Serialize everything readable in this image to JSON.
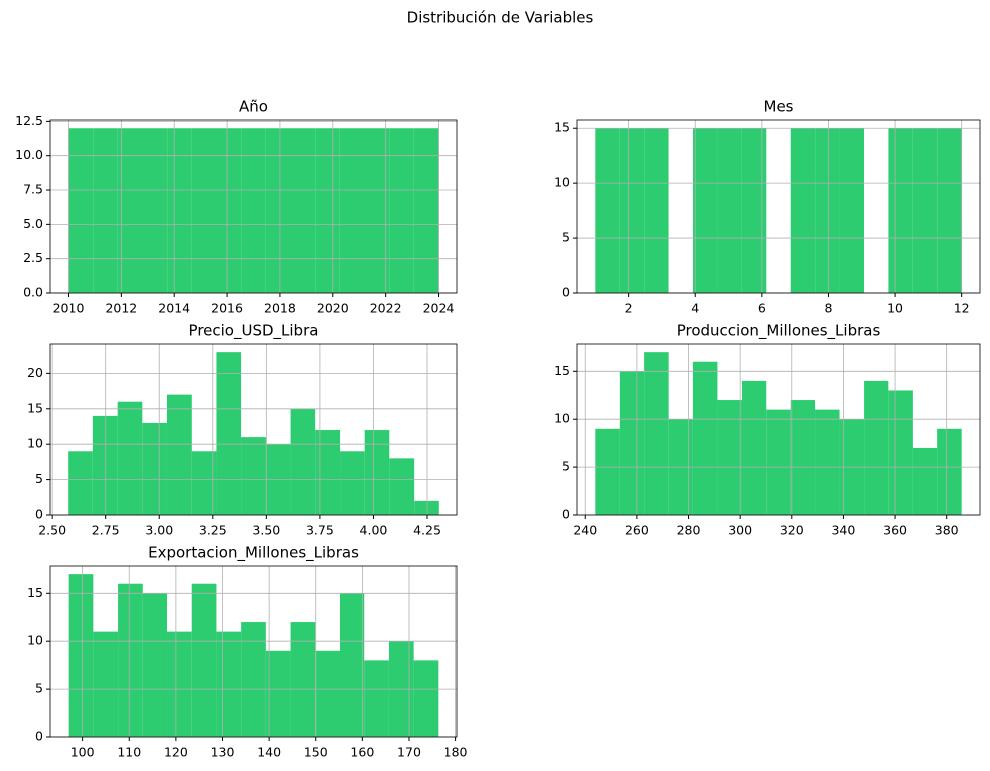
{
  "title": "Distribución de Variables",
  "chart_data": [
    {
      "type": "histogram",
      "title": "Año",
      "color": "#2ecc71",
      "grid": true,
      "bins": [
        2010,
        2010.933,
        2011.867,
        2012.8,
        2013.733,
        2014.667,
        2015.6,
        2016.533,
        2017.467,
        2018.4,
        2019.333,
        2020.267,
        2021.2,
        2022.133,
        2023.067,
        2024
      ],
      "values": [
        12,
        12,
        12,
        12,
        12,
        12,
        12,
        12,
        12,
        12,
        12,
        12,
        12,
        12,
        12
      ],
      "xlim": [
        2009.3,
        2024.7
      ],
      "ylim": [
        0,
        12.6
      ],
      "xticks": [
        2010,
        2012,
        2014,
        2016,
        2018,
        2020,
        2022,
        2024
      ],
      "yticks": [
        {
          "value": 0,
          "label": "0.0"
        },
        2.5,
        {
          "value": 5,
          "label": "5.0"
        },
        7.5,
        {
          "value": 10,
          "label": "10.0"
        },
        12.5
      ]
    },
    {
      "type": "histogram",
      "title": "Mes",
      "color": "#2ecc71",
      "grid": true,
      "bins": [
        1,
        1.733,
        2.467,
        3.2,
        3.933,
        4.667,
        5.4,
        6.133,
        6.867,
        7.6,
        8.333,
        9.067,
        9.8,
        10.533,
        11.267,
        12
      ],
      "values": [
        15,
        15,
        15,
        0,
        15,
        15,
        15,
        0,
        15,
        15,
        15,
        0,
        15,
        15,
        15
      ],
      "xlim": [
        0.45,
        12.55
      ],
      "ylim": [
        0,
        15.75
      ],
      "xticks": [
        2,
        4,
        6,
        8,
        10,
        12
      ],
      "yticks": [
        0,
        5,
        10,
        15
      ]
    },
    {
      "type": "histogram",
      "title": "Precio_USD_Libra",
      "color": "#2ecc71",
      "grid": true,
      "bins": [
        2.575,
        2.69,
        2.806,
        2.921,
        3.036,
        3.152,
        3.267,
        3.382,
        3.498,
        3.613,
        3.728,
        3.844,
        3.959,
        4.074,
        4.19,
        4.305
      ],
      "values": [
        9,
        14,
        16,
        13,
        17,
        9,
        23,
        11,
        10,
        15,
        12,
        9,
        12,
        8,
        2
      ],
      "xlim": [
        2.49,
        4.39
      ],
      "ylim": [
        0,
        24.15
      ],
      "xticks": [
        {
          "value": 2.5,
          "label": "2.50"
        },
        2.75,
        {
          "value": 3,
          "label": "3.00"
        },
        3.25,
        {
          "value": 3.5,
          "label": "3.50"
        },
        3.75,
        {
          "value": 4,
          "label": "4.00"
        },
        4.25
      ],
      "yticks": [
        0,
        5,
        10,
        15,
        20
      ]
    },
    {
      "type": "histogram",
      "title": "Produccion_Millones_Libras",
      "color": "#2ecc71",
      "grid": true,
      "bins": [
        243.9,
        253.4,
        262.8,
        272.3,
        281.7,
        291.2,
        300.7,
        310.1,
        319.6,
        329.0,
        338.5,
        348.0,
        357.4,
        366.9,
        376.3,
        385.8
      ],
      "values": [
        9,
        15,
        17,
        10,
        16,
        12,
        14,
        11,
        12,
        11,
        10,
        14,
        13,
        7,
        9
      ],
      "xlim": [
        236.8,
        392.9
      ],
      "ylim": [
        0,
        17.85
      ],
      "xticks": [
        240,
        260,
        280,
        300,
        320,
        340,
        360,
        380
      ],
      "yticks": [
        0,
        5,
        10,
        15
      ]
    },
    {
      "type": "histogram",
      "title": "Exportacion_Millones_Libras",
      "color": "#2ecc71",
      "grid": true,
      "bins": [
        97.0,
        102.3,
        107.6,
        112.9,
        118.1,
        123.4,
        128.7,
        134.0,
        139.3,
        144.6,
        149.9,
        155.2,
        160.4,
        165.7,
        171.0,
        176.3
      ],
      "values": [
        17,
        11,
        16,
        15,
        11,
        16,
        11,
        12,
        9,
        12,
        9,
        15,
        8,
        10,
        8
      ],
      "xlim": [
        93.0,
        180.3
      ],
      "ylim": [
        0,
        17.85
      ],
      "xticks": [
        100,
        110,
        120,
        130,
        140,
        150,
        160,
        170,
        180
      ],
      "yticks": [
        0,
        5,
        10,
        15
      ]
    }
  ]
}
